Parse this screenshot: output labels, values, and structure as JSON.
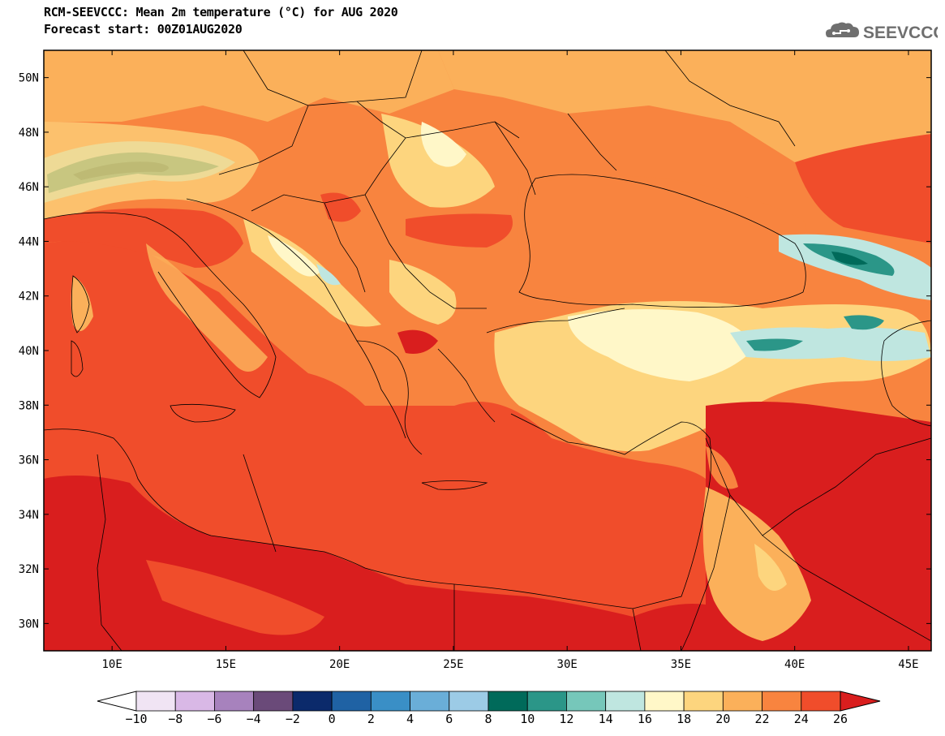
{
  "header": {
    "title": "RCM-SEEVCCC: Mean 2m temperature (°C) for AUG 2020",
    "subtitle": "Forecast start: 00Z01AUG2020",
    "logo_text": "SEEVCCC"
  },
  "map": {
    "variable": "Mean 2m temperature",
    "units": "°C",
    "lon_range": [
      7,
      46
    ],
    "lat_range": [
      29,
      51
    ],
    "lat_labels": [
      "50N",
      "48N",
      "46N",
      "44N",
      "42N",
      "40N",
      "38N",
      "36N",
      "34N",
      "32N",
      "30N"
    ],
    "lon_labels": [
      "10E",
      "15E",
      "20E",
      "25E",
      "30E",
      "35E",
      "40E",
      "45E"
    ]
  },
  "colorbar": {
    "tick_labels": [
      "−10",
      "−8",
      "−6",
      "−4",
      "−2",
      "0",
      "2",
      "4",
      "6",
      "8",
      "10",
      "12",
      "14",
      "16",
      "18",
      "20",
      "22",
      "24",
      "26"
    ],
    "colors": [
      "#ffffff",
      "#f0e4f4",
      "#d9b8e6",
      "#a782bd",
      "#6a4a79",
      "#0b2a6b",
      "#1f62a4",
      "#3a8fc6",
      "#6aaed8",
      "#9ccbe6",
      "#006a5a",
      "#2b9688",
      "#76c7ba",
      "#bfe6e0",
      "#fff7c8",
      "#fdd57e",
      "#fbb05a",
      "#f8843f",
      "#f04d2b",
      "#d91e1e"
    ],
    "colors_note": ""
  }
}
